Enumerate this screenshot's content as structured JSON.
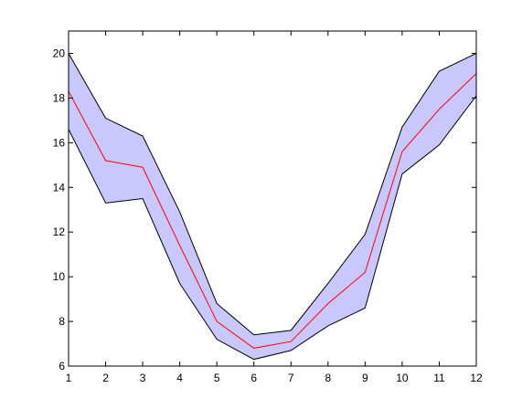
{
  "chart_data": {
    "type": "area",
    "title": "",
    "xlabel": "",
    "ylabel": "",
    "xlim": [
      1,
      12
    ],
    "ylim": [
      6,
      21
    ],
    "xticks": [
      1,
      2,
      3,
      4,
      5,
      6,
      7,
      8,
      9,
      10,
      11,
      12
    ],
    "yticks": [
      6,
      8,
      10,
      12,
      14,
      16,
      18,
      20
    ],
    "x": [
      1,
      2,
      3,
      4,
      5,
      6,
      7,
      8,
      9,
      10,
      11,
      12
    ],
    "band": {
      "upper": [
        20.0,
        17.1,
        16.3,
        12.9,
        8.8,
        7.4,
        7.6,
        9.7,
        11.9,
        16.7,
        19.2,
        20.0
      ],
      "lower": [
        16.6,
        13.3,
        13.5,
        9.7,
        7.2,
        6.3,
        6.7,
        7.8,
        8.6,
        14.6,
        15.9,
        18.1
      ]
    },
    "series": [
      {
        "values": [
          18.3,
          15.2,
          14.9,
          11.4,
          8.0,
          6.8,
          7.1,
          8.8,
          10.2,
          15.6,
          17.5,
          19.1
        ]
      }
    ],
    "grid": false,
    "colors": {
      "band_fill": "#c8c8ff",
      "band_edge": "#000000",
      "center_line": "#ff0000"
    }
  }
}
